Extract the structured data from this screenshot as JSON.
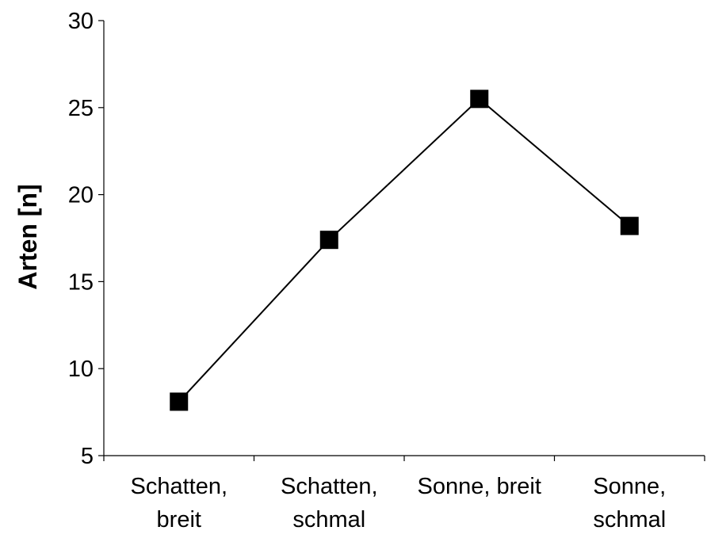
{
  "chart_data": {
    "type": "line",
    "categories": [
      [
        "Schatten,",
        "breit"
      ],
      [
        "Schatten,",
        "schmal"
      ],
      [
        "Sonne, breit"
      ],
      [
        "Sonne,",
        "schmal"
      ]
    ],
    "series": [
      {
        "values": [
          8.1,
          17.4,
          25.5,
          18.2
        ]
      }
    ],
    "title": "",
    "xlabel": "",
    "ylabel": "Arten [n]",
    "ylim": [
      5,
      30
    ],
    "yticks": [
      "5",
      "10",
      "15",
      "20",
      "25",
      "30"
    ],
    "grid": false,
    "legend": "none",
    "marker": "square",
    "line_color": "#000000",
    "marker_color": "#000000"
  }
}
